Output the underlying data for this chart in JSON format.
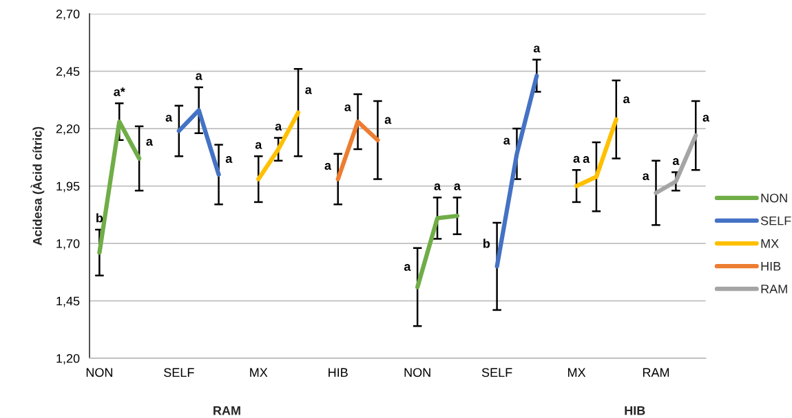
{
  "chart_data": {
    "type": "line",
    "ylabel": "Acidesa (Àcid cítric)",
    "categories": [
      "NON",
      null,
      null,
      null,
      "SELF",
      null,
      null,
      null,
      "MX",
      null,
      null,
      null,
      "HIB",
      null,
      null,
      null,
      "NON",
      null,
      null,
      null,
      "SELF",
      null,
      null,
      null,
      "MX",
      null,
      null,
      null,
      "RAM",
      null,
      null
    ],
    "series": [
      {
        "name": "NON",
        "color": "#70ad47",
        "values": [
          1.66,
          2.23,
          2.07,
          null,
          null,
          null,
          null,
          null,
          null,
          null,
          null,
          null,
          null,
          null,
          null,
          null,
          1.51,
          1.81,
          1.82,
          null,
          null,
          null,
          null,
          null,
          null,
          null,
          null,
          null,
          null,
          null,
          null
        ],
        "errors": [
          0.1,
          0.08,
          0.14,
          null,
          null,
          null,
          null,
          null,
          null,
          null,
          null,
          null,
          null,
          null,
          null,
          null,
          0.17,
          0.09,
          0.08,
          null,
          null,
          null,
          null,
          null,
          null,
          null,
          null,
          null,
          null,
          null,
          null
        ],
        "value_labels": [
          "b",
          "a*",
          "a",
          null,
          null,
          null,
          null,
          null,
          null,
          null,
          null,
          null,
          null,
          null,
          null,
          null,
          "a",
          "a",
          "a",
          null,
          null,
          null,
          null,
          null,
          null,
          null,
          null,
          null,
          null,
          null,
          null
        ]
      },
      {
        "name": "SELF",
        "color": "#4472c4",
        "values": [
          null,
          null,
          null,
          null,
          2.19,
          2.28,
          2.0,
          null,
          null,
          null,
          null,
          null,
          null,
          null,
          null,
          null,
          null,
          null,
          null,
          null,
          1.6,
          2.09,
          2.43,
          null,
          null,
          null,
          null,
          null,
          null,
          null,
          null
        ],
        "errors": [
          null,
          null,
          null,
          null,
          0.11,
          0.1,
          0.13,
          null,
          null,
          null,
          null,
          null,
          null,
          null,
          null,
          null,
          null,
          null,
          null,
          null,
          0.19,
          0.11,
          0.07,
          null,
          null,
          null,
          null,
          null,
          null,
          null,
          null
        ],
        "value_labels": [
          null,
          null,
          null,
          null,
          "a",
          "a",
          "a",
          null,
          null,
          null,
          null,
          null,
          null,
          null,
          null,
          null,
          null,
          null,
          null,
          null,
          "b",
          "a",
          "a",
          null,
          null,
          null,
          null,
          null,
          null,
          null,
          null
        ]
      },
      {
        "name": "MX",
        "color": "#ffc000",
        "values": [
          null,
          null,
          null,
          null,
          null,
          null,
          null,
          null,
          1.98,
          2.11,
          2.27,
          null,
          null,
          null,
          null,
          null,
          null,
          null,
          null,
          null,
          null,
          null,
          null,
          null,
          1.95,
          1.99,
          2.24,
          null,
          null,
          null,
          null
        ],
        "errors": [
          null,
          null,
          null,
          null,
          null,
          null,
          null,
          null,
          0.1,
          0.05,
          0.19,
          null,
          null,
          null,
          null,
          null,
          null,
          null,
          null,
          null,
          null,
          null,
          null,
          null,
          0.07,
          0.15,
          0.17,
          null,
          null,
          null,
          null
        ],
        "value_labels": [
          null,
          null,
          null,
          null,
          null,
          null,
          null,
          null,
          "a",
          "a",
          "a",
          null,
          null,
          null,
          null,
          null,
          null,
          null,
          null,
          null,
          null,
          null,
          null,
          null,
          "a",
          "a",
          "a",
          null,
          null,
          null,
          null
        ]
      },
      {
        "name": "HIB",
        "color": "#ed7d31",
        "values": [
          null,
          null,
          null,
          null,
          null,
          null,
          null,
          null,
          null,
          null,
          null,
          null,
          1.98,
          2.23,
          2.15,
          null,
          null,
          null,
          null,
          null,
          null,
          null,
          null,
          null,
          null,
          null,
          null,
          null,
          null,
          null,
          null
        ],
        "errors": [
          null,
          null,
          null,
          null,
          null,
          null,
          null,
          null,
          null,
          null,
          null,
          null,
          0.11,
          0.12,
          0.17,
          null,
          null,
          null,
          null,
          null,
          null,
          null,
          null,
          null,
          null,
          null,
          null,
          null,
          null,
          null,
          null
        ],
        "value_labels": [
          null,
          null,
          null,
          null,
          null,
          null,
          null,
          null,
          null,
          null,
          null,
          null,
          "a",
          "a",
          "a",
          null,
          null,
          null,
          null,
          null,
          null,
          null,
          null,
          null,
          null,
          null,
          null,
          null,
          null,
          null,
          null
        ]
      },
      {
        "name": "RAM",
        "color": "#a5a5a5",
        "values": [
          null,
          null,
          null,
          null,
          null,
          null,
          null,
          null,
          null,
          null,
          null,
          null,
          null,
          null,
          null,
          null,
          null,
          null,
          null,
          null,
          null,
          null,
          null,
          null,
          null,
          null,
          null,
          null,
          1.92,
          1.97,
          2.17
        ],
        "errors": [
          null,
          null,
          null,
          null,
          null,
          null,
          null,
          null,
          null,
          null,
          null,
          null,
          null,
          null,
          null,
          null,
          null,
          null,
          null,
          null,
          null,
          null,
          null,
          null,
          null,
          null,
          null,
          null,
          0.14,
          0.04,
          0.15
        ],
        "value_labels": [
          null,
          null,
          null,
          null,
          null,
          null,
          null,
          null,
          null,
          null,
          null,
          null,
          null,
          null,
          null,
          null,
          null,
          null,
          null,
          null,
          null,
          null,
          null,
          null,
          null,
          null,
          null,
          null,
          "a",
          "a",
          "a"
        ]
      }
    ],
    "ylim": [
      1.2,
      2.7
    ],
    "yticks": [
      {
        "value": 1.2,
        "label": "1,20"
      },
      {
        "value": 1.45,
        "label": "1,45"
      },
      {
        "value": 1.7,
        "label": "1,70"
      },
      {
        "value": 1.95,
        "label": "1,95"
      },
      {
        "value": 2.2,
        "label": "2,20"
      },
      {
        "value": 2.45,
        "label": "2,45"
      },
      {
        "value": 2.7,
        "label": "2,70"
      }
    ],
    "grid": "y",
    "legend": "right",
    "annotations": [
      "RAM",
      "HIB"
    ]
  }
}
